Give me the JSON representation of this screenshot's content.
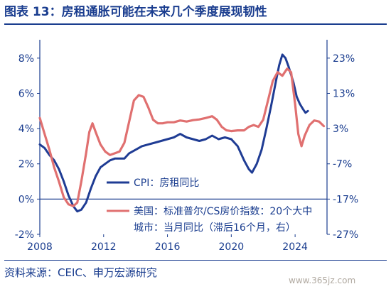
{
  "header": {
    "title": "图表 13：房租通胀可能在未来几个季度展现韧性"
  },
  "footer": {
    "source": "资料来源：CEIC、申万宏源研究",
    "watermark": "www.365jz.com"
  },
  "colors": {
    "cpi": "#1f3c94",
    "housing": "#e07070",
    "text": "#1a3d8f",
    "axis": "#1a3d8f"
  },
  "chart_data": {
    "type": "line",
    "title": "",
    "x_ticks": [
      "2008",
      "2012",
      "2016",
      "2020",
      "2024"
    ],
    "x_range": [
      2008,
      2026
    ],
    "y_left": {
      "ticks": [
        "8%",
        "6%",
        "4%",
        "2%",
        "0%",
        "-2%"
      ],
      "range": [
        -2,
        8.8
      ]
    },
    "y_right": {
      "ticks": [
        "23%",
        "13%",
        "3%",
        "-7%",
        "-17%",
        "-27%"
      ],
      "range": [
        -27,
        27
      ]
    },
    "legend_position": "middle",
    "series": [
      {
        "name": "CPI：房租同比",
        "axis": "left",
        "color": "#1f3c94",
        "points": [
          [
            2008.0,
            3.1
          ],
          [
            2008.3,
            2.9
          ],
          [
            2008.6,
            2.5
          ],
          [
            2008.9,
            2.2
          ],
          [
            2009.2,
            1.7
          ],
          [
            2009.5,
            1.0
          ],
          [
            2009.8,
            0.2
          ],
          [
            2010.1,
            -0.4
          ],
          [
            2010.35,
            -0.7
          ],
          [
            2010.6,
            -0.6
          ],
          [
            2010.9,
            -0.2
          ],
          [
            2011.2,
            0.6
          ],
          [
            2011.5,
            1.3
          ],
          [
            2011.8,
            1.8
          ],
          [
            2012.1,
            2.0
          ],
          [
            2012.4,
            2.2
          ],
          [
            2012.7,
            2.3
          ],
          [
            2013.0,
            2.3
          ],
          [
            2013.3,
            2.3
          ],
          [
            2013.6,
            2.6
          ],
          [
            2014.0,
            2.8
          ],
          [
            2014.4,
            3.0
          ],
          [
            2014.8,
            3.1
          ],
          [
            2015.2,
            3.2
          ],
          [
            2015.6,
            3.3
          ],
          [
            2016.0,
            3.4
          ],
          [
            2016.4,
            3.5
          ],
          [
            2016.8,
            3.7
          ],
          [
            2017.2,
            3.5
          ],
          [
            2017.6,
            3.4
          ],
          [
            2018.0,
            3.3
          ],
          [
            2018.4,
            3.4
          ],
          [
            2018.8,
            3.6
          ],
          [
            2019.2,
            3.4
          ],
          [
            2019.6,
            3.5
          ],
          [
            2020.0,
            3.4
          ],
          [
            2020.4,
            3.0
          ],
          [
            2020.8,
            2.2
          ],
          [
            2021.1,
            1.7
          ],
          [
            2021.3,
            1.5
          ],
          [
            2021.6,
            2.0
          ],
          [
            2021.9,
            2.8
          ],
          [
            2022.2,
            4.0
          ],
          [
            2022.5,
            5.3
          ],
          [
            2022.8,
            6.7
          ],
          [
            2023.0,
            7.6
          ],
          [
            2023.2,
            8.2
          ],
          [
            2023.4,
            8.0
          ],
          [
            2023.6,
            7.5
          ],
          [
            2023.9,
            6.6
          ],
          [
            2024.1,
            5.8
          ],
          [
            2024.3,
            5.4
          ],
          [
            2024.5,
            5.1
          ],
          [
            2024.65,
            4.9
          ],
          [
            2024.8,
            5.0
          ]
        ]
      },
      {
        "name": "美国：标准普尔/CS房价指数：20个大中城市：当月同比（滞后16个月，右）",
        "axis": "right",
        "color": "#e07070",
        "points": [
          [
            2008.0,
            6.0
          ],
          [
            2008.3,
            1.5
          ],
          [
            2008.6,
            -3.0
          ],
          [
            2008.9,
            -8.0
          ],
          [
            2009.2,
            -12.0
          ],
          [
            2009.5,
            -16.5
          ],
          [
            2009.8,
            -18.5
          ],
          [
            2010.1,
            -19.0
          ],
          [
            2010.35,
            -18.0
          ],
          [
            2010.6,
            -12.0
          ],
          [
            2010.9,
            -4.0
          ],
          [
            2011.1,
            2.0
          ],
          [
            2011.3,
            4.5
          ],
          [
            2011.5,
            2.0
          ],
          [
            2011.8,
            -1.5
          ],
          [
            2012.1,
            -3.5
          ],
          [
            2012.4,
            -4.5
          ],
          [
            2012.7,
            -4.0
          ],
          [
            2013.0,
            -3.5
          ],
          [
            2013.3,
            -1.0
          ],
          [
            2013.6,
            5.0
          ],
          [
            2013.9,
            11.0
          ],
          [
            2014.2,
            12.5
          ],
          [
            2014.5,
            12.0
          ],
          [
            2014.8,
            9.0
          ],
          [
            2015.1,
            5.5
          ],
          [
            2015.4,
            4.5
          ],
          [
            2015.7,
            4.5
          ],
          [
            2016.0,
            4.8
          ],
          [
            2016.4,
            4.8
          ],
          [
            2016.8,
            5.3
          ],
          [
            2017.2,
            5.0
          ],
          [
            2017.6,
            5.4
          ],
          [
            2018.0,
            5.6
          ],
          [
            2018.4,
            6.0
          ],
          [
            2018.8,
            6.5
          ],
          [
            2019.1,
            5.5
          ],
          [
            2019.4,
            3.5
          ],
          [
            2019.7,
            2.5
          ],
          [
            2020.0,
            2.3
          ],
          [
            2020.4,
            2.5
          ],
          [
            2020.8,
            2.5
          ],
          [
            2021.1,
            3.5
          ],
          [
            2021.4,
            4.0
          ],
          [
            2021.7,
            3.5
          ],
          [
            2022.0,
            5.5
          ],
          [
            2022.3,
            11.0
          ],
          [
            2022.6,
            16.5
          ],
          [
            2022.9,
            19.0
          ],
          [
            2023.2,
            18.0
          ],
          [
            2023.5,
            20.0
          ],
          [
            2023.75,
            19.0
          ],
          [
            2024.0,
            10.0
          ],
          [
            2024.2,
            1.5
          ],
          [
            2024.4,
            -2.0
          ],
          [
            2024.6,
            1.0
          ],
          [
            2024.9,
            4.0
          ],
          [
            2025.2,
            5.3
          ],
          [
            2025.5,
            5.0
          ],
          [
            2025.8,
            3.7
          ]
        ]
      }
    ],
    "legend": [
      {
        "label": "CPI：房租同比"
      },
      {
        "label_line1": "美国：标准普尔/CS房价指数：20个大中",
        "label_line2": "城市：当月同比（滞后16个月，右）"
      }
    ]
  }
}
